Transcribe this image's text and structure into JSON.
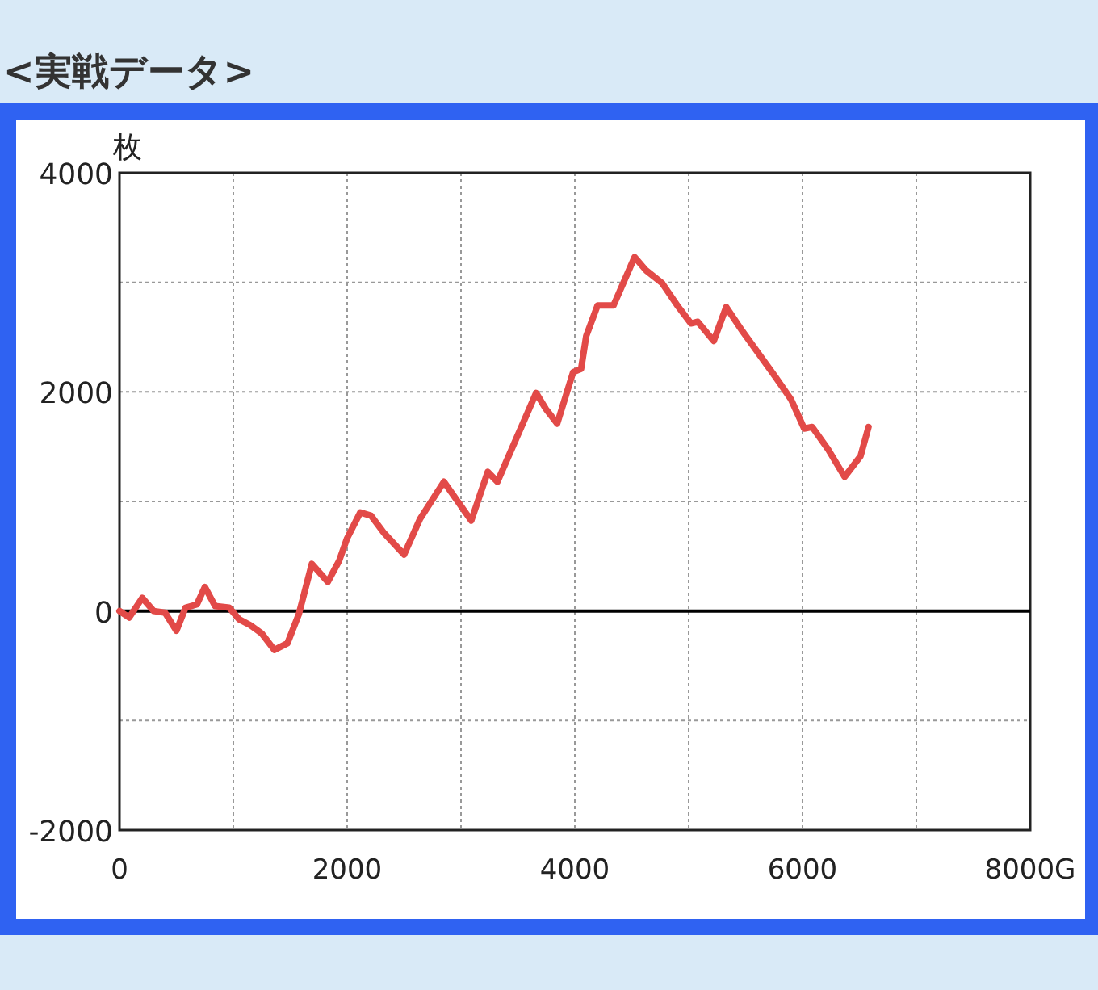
{
  "chart_data": {
    "type": "line",
    "title": "<実戦データ>",
    "ylabel": "枚",
    "x": [
      0,
      85,
      200,
      300,
      400,
      500,
      580,
      680,
      750,
      840,
      965,
      1050,
      1150,
      1250,
      1360,
      1475,
      1575,
      1690,
      1830,
      1930,
      2000,
      2115,
      2210,
      2325,
      2500,
      2640,
      2850,
      3090,
      3235,
      3320,
      3660,
      3745,
      3845,
      3985,
      4055,
      4100,
      4200,
      4340,
      4525,
      4625,
      4765,
      4910,
      5020,
      5080,
      5220,
      5330,
      5475,
      5760,
      5900,
      6015,
      6085,
      6225,
      6370,
      6510,
      6580
    ],
    "series": [
      {
        "color": "#e24a48",
        "values": [
          0,
          -60,
          120,
          0,
          -15,
          -180,
          30,
          60,
          220,
          45,
          30,
          -75,
          -130,
          -205,
          -355,
          -295,
          -30,
          430,
          265,
          460,
          665,
          900,
          870,
          710,
          515,
          840,
          1180,
          825,
          1270,
          1180,
          1990,
          1845,
          1710,
          2180,
          2210,
          2510,
          2790,
          2790,
          3230,
          3110,
          2995,
          2775,
          2625,
          2640,
          2465,
          2775,
          2550,
          2140,
          1930,
          1665,
          1680,
          1475,
          1225,
          1415,
          1680
        ]
      }
    ],
    "xlim": [
      0,
      8000
    ],
    "xticks": [
      0,
      {
        "value": 1000,
        "label": null
      },
      2000,
      {
        "value": 3000,
        "label": null
      },
      4000,
      {
        "value": 5000,
        "label": null
      },
      6000,
      {
        "value": 7000,
        "label": null
      },
      {
        "value": 8000,
        "label": "8000G"
      }
    ],
    "ylim": [
      -2000,
      4000
    ],
    "yticks": [
      -2000,
      {
        "value": -1000,
        "label": null
      },
      0,
      {
        "value": 1000,
        "label": null
      },
      2000,
      {
        "value": 3000,
        "label": null
      },
      4000
    ],
    "ref_lines": [
      {
        "axis": "y",
        "value": 0,
        "color": "#000000"
      }
    ],
    "grid": true,
    "marker": "none",
    "line_style": "solid"
  }
}
